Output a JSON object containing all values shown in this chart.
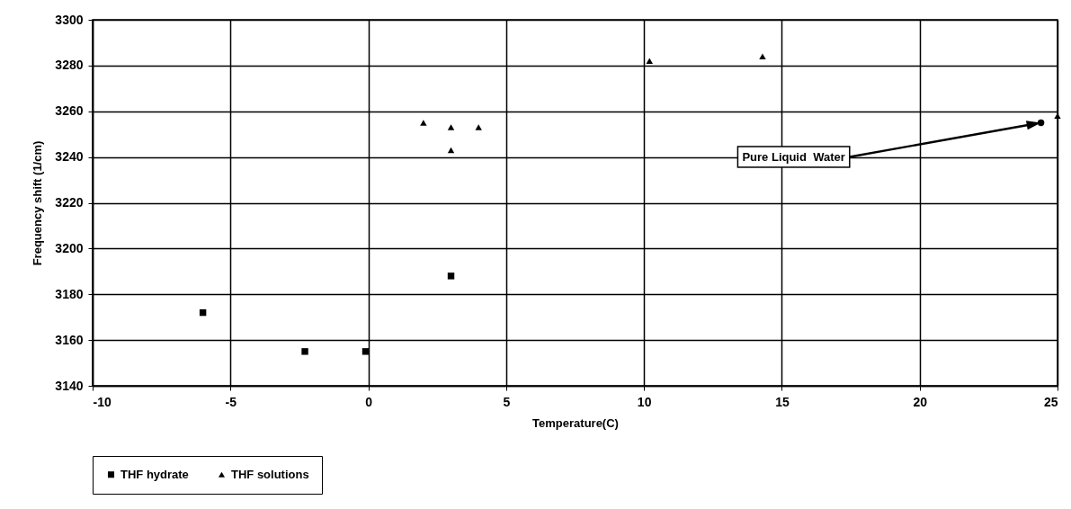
{
  "chart_data": {
    "type": "scatter",
    "xlabel": "Temperature(C)",
    "ylabel": "Frequency shift (1/cm)",
    "xlim": [
      -10,
      25
    ],
    "xticks": [
      -10,
      -5,
      0,
      5,
      10,
      15,
      20,
      25
    ],
    "ylim": [
      3140,
      3300
    ],
    "yticks": [
      3140,
      3160,
      3180,
      3200,
      3220,
      3240,
      3260,
      3280,
      3300
    ],
    "grid": true,
    "legend": "bottom",
    "series": [
      {
        "name": "THF hydrate",
        "color": "#000000",
        "marker": "square",
        "x": [
          -6,
          -2.3,
          -0.1,
          3
        ],
        "values": [
          3172,
          3155,
          3155,
          3188
        ]
      },
      {
        "name": "THF solutions",
        "color": "#000000",
        "marker": "triangle",
        "x": [
          2,
          3,
          3,
          4,
          10.2,
          14.3,
          25
        ],
        "values": [
          3255,
          3253,
          3243,
          3253,
          3282,
          3284,
          3258
        ]
      },
      {
        "color": "#000000",
        "marker": "circle",
        "x": [
          24.4
        ],
        "values": [
          3255
        ]
      }
    ],
    "annotations": [
      "Pure Liquid  Water"
    ]
  }
}
